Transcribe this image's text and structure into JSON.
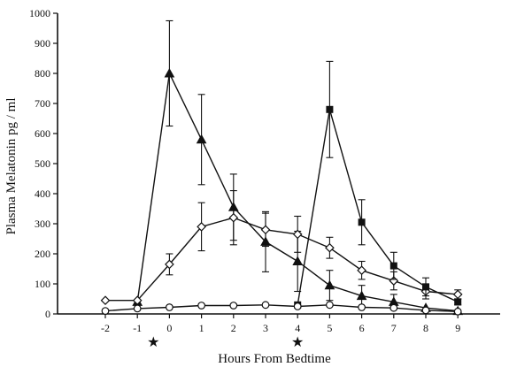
{
  "chart_data": {
    "type": "line",
    "xlabel": "Hours From Bedtime",
    "ylabel": "Plasma Melatonin pg / ml",
    "xlim": [
      -3,
      10
    ],
    "ylim": [
      0,
      1000
    ],
    "xticks": [
      -2,
      -1,
      0,
      1,
      2,
      3,
      4,
      5,
      6,
      7,
      8,
      9
    ],
    "yticks": [
      0,
      100,
      200,
      300,
      400,
      500,
      600,
      700,
      800,
      900,
      1000
    ],
    "grid": false,
    "series": [
      {
        "marker": "filled-triangle",
        "x": [
          -1,
          0,
          1,
          2,
          3,
          4,
          5,
          6,
          7,
          8,
          9
        ],
        "y": [
          40,
          800,
          580,
          355,
          240,
          175,
          95,
          60,
          40,
          20,
          10
        ],
        "yerr": [
          0,
          175,
          150,
          110,
          100,
          100,
          50,
          35,
          25,
          0,
          0
        ]
      },
      {
        "marker": "open-diamond",
        "x": [
          -2,
          -1,
          0,
          1,
          2,
          3,
          4,
          5,
          6,
          7,
          8,
          9
        ],
        "y": [
          45,
          45,
          165,
          290,
          320,
          280,
          265,
          220,
          145,
          110,
          75,
          65
        ],
        "yerr": [
          0,
          0,
          35,
          80,
          90,
          55,
          60,
          35,
          30,
          30,
          25,
          15
        ]
      },
      {
        "marker": "filled-square",
        "x": [
          4,
          5,
          6,
          7,
          8,
          9
        ],
        "y": [
          30,
          680,
          305,
          160,
          90,
          40
        ],
        "yerr": [
          0,
          160,
          75,
          45,
          30,
          10
        ]
      },
      {
        "marker": "open-circle",
        "x": [
          -2,
          -1,
          0,
          1,
          2,
          3,
          4,
          5,
          6,
          7,
          8,
          9
        ],
        "y": [
          10,
          18,
          22,
          28,
          28,
          30,
          25,
          30,
          22,
          20,
          12,
          8
        ],
        "yerr": [
          0,
          0,
          0,
          0,
          0,
          0,
          0,
          0,
          0,
          0,
          0,
          0
        ]
      }
    ],
    "annotations": [
      {
        "symbol": "★",
        "x": -0.5
      },
      {
        "symbol": "★",
        "x": 4
      }
    ]
  }
}
